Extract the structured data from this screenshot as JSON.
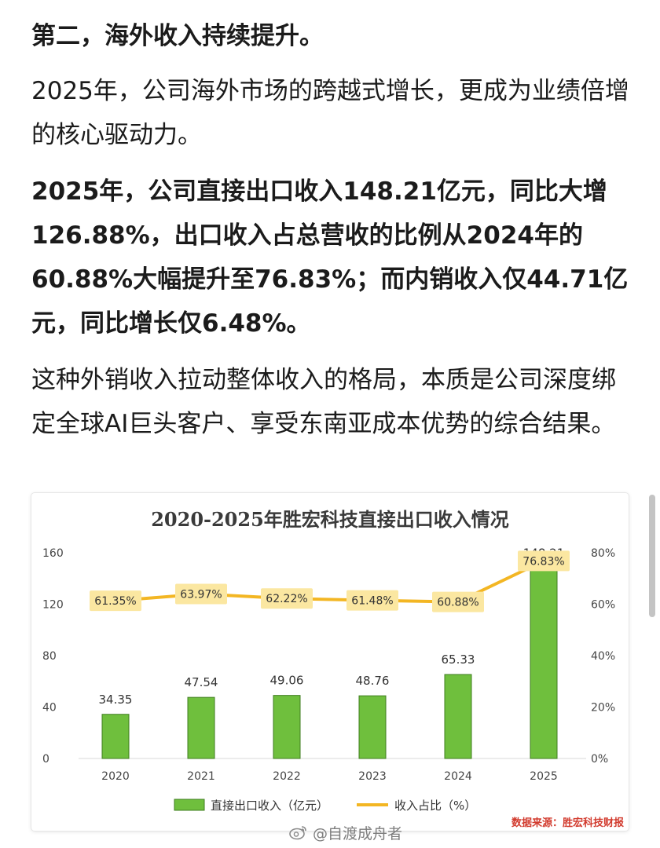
{
  "article": {
    "heading": "第二，海外收入持续提升。",
    "paragraphs": [
      {
        "text": "2025年，公司海外市场的跨越式增长，更成为业绩倍增的核心驱动力。",
        "bold": false
      },
      {
        "text": "2025年，公司直接出口收入148.21亿元，同比大增126.88%，出口收入占总营收的比例从2024年的60.88%大幅提升至76.83%；而内销收入仅44.71亿元，同比增长仅6.48%。",
        "bold": true
      },
      {
        "text": "这种外销收入拉动整体收入的格局，本质是公司深度绑定全球AI巨头客户、享受东南亚成本优势的综合结果。",
        "bold": false
      }
    ]
  },
  "chart_data": {
    "type": "bar",
    "title": "2020-2025年胜宏科技直接出口收入情况",
    "categories": [
      "2020",
      "2021",
      "2022",
      "2023",
      "2024",
      "2025"
    ],
    "series": [
      {
        "name": "直接出口收入（亿元）",
        "type": "bar",
        "axis": "left",
        "color": "#6fbf3d",
        "values": [
          34.35,
          47.54,
          49.06,
          48.76,
          65.33,
          148.21
        ],
        "labels": [
          "34.35",
          "47.54",
          "49.06",
          "48.76",
          "65.33",
          "148.21"
        ]
      },
      {
        "name": "收入占比（%）",
        "type": "line",
        "axis": "right",
        "color": "#f3b623",
        "values": [
          61.35,
          63.97,
          62.22,
          61.48,
          60.88,
          76.83
        ],
        "labels": [
          "61.35%",
          "63.97%",
          "62.22%",
          "61.48%",
          "60.88%",
          "76.83%"
        ]
      }
    ],
    "y_left": {
      "min": 0,
      "max": 160,
      "ticks": [
        "0",
        "40",
        "80",
        "120",
        "160"
      ]
    },
    "y_right": {
      "min": 0,
      "max": 80,
      "ticks": [
        "0%",
        "20%",
        "40%",
        "60%",
        "80%"
      ]
    },
    "grid": false,
    "legend_position": "bottom",
    "source_note": "数据来源：胜宏科技财报",
    "colors": {
      "label_box": "#fbe7a1",
      "source_note": "#d23b2e",
      "title": "#3a3a3a",
      "axis_text": "#444444"
    }
  },
  "watermark": {
    "text": "@自渡成舟者",
    "icon": "weibo-icon"
  }
}
